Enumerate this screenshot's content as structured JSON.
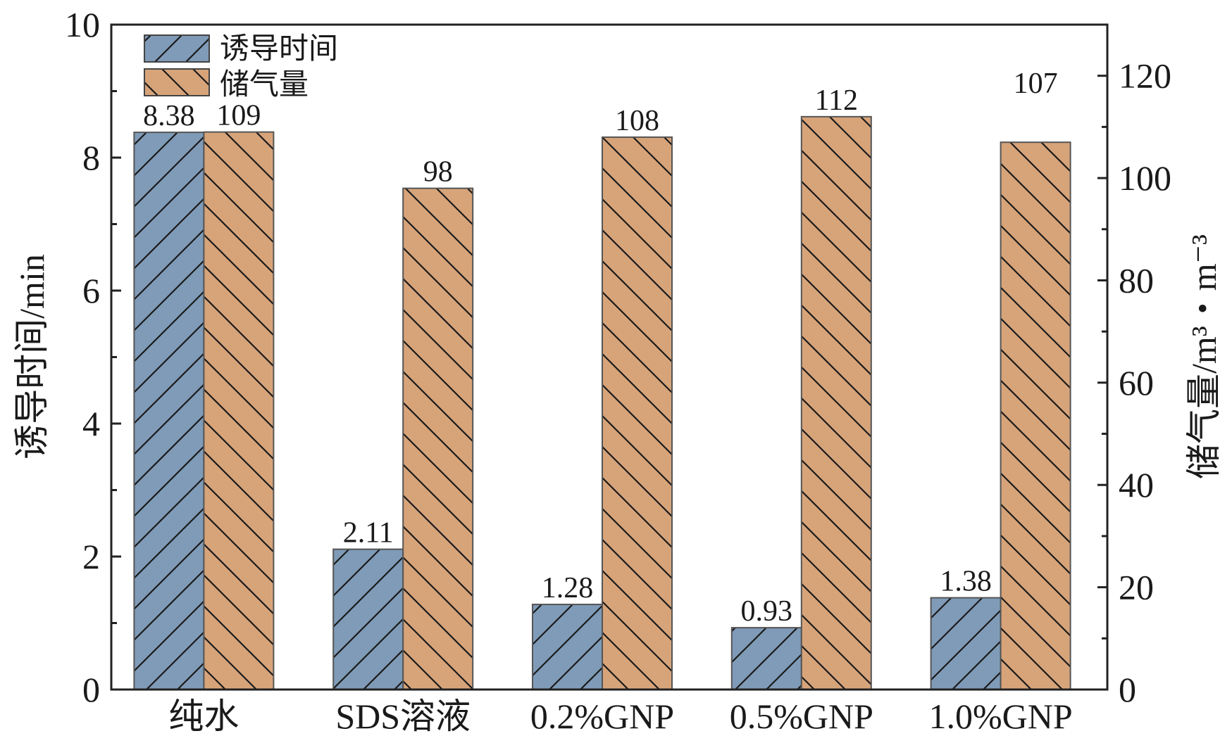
{
  "chart_data": {
    "type": "bar",
    "categories": [
      "纯水",
      "SDS溶液",
      "0.2%GNP",
      "0.5%GNP",
      "1.0%GNP"
    ],
    "series": [
      {
        "name": "诱导时间",
        "axis": "left",
        "values": [
          8.38,
          2.11,
          1.28,
          0.93,
          1.38
        ],
        "labels": [
          "8.38",
          "2.11",
          "1.28",
          "0.93",
          "1.38"
        ],
        "color": "#7f9bb8",
        "hatch": "forward-diagonal"
      },
      {
        "name": "储气量",
        "axis": "right",
        "values": [
          109,
          98,
          108,
          112,
          107
        ],
        "labels": [
          "109",
          "98",
          "108",
          "112",
          "107"
        ],
        "color": "#d7a47a",
        "hatch": "back-diagonal"
      }
    ],
    "ylabel": "诱导时间/min",
    "ylabel_right": "储气量/m³・m⁻³",
    "ylim": [
      0,
      10
    ],
    "ylim_right": [
      0,
      130
    ],
    "yticks": [
      "0",
      "2",
      "4",
      "6",
      "8",
      "10"
    ],
    "yticks_right": [
      "0",
      "20",
      "40",
      "60",
      "80",
      "100",
      "120"
    ],
    "legend": "top-left",
    "grid": false
  }
}
